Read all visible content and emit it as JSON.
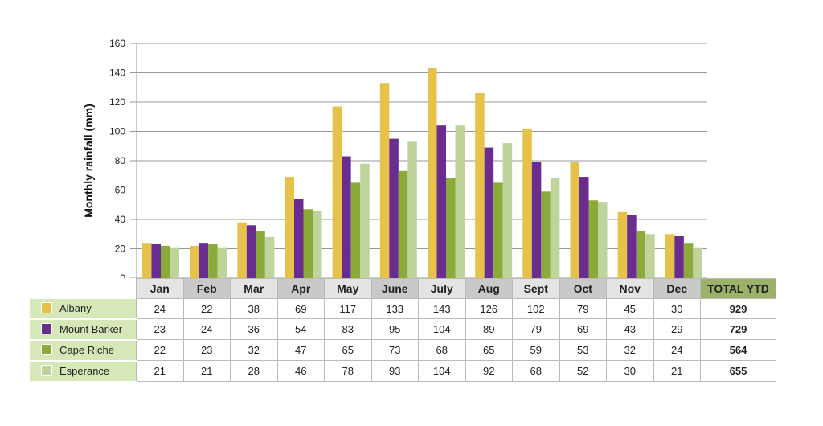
{
  "chart_data": {
    "type": "bar",
    "ylabel": "Monthly rainfall (mm)",
    "ylim": [
      0,
      160
    ],
    "yticks": [
      0,
      20,
      40,
      60,
      80,
      100,
      120,
      140,
      160
    ],
    "categories": [
      "Jan",
      "Feb",
      "Mar",
      "Apr",
      "May",
      "June",
      "July",
      "Aug",
      "Sept",
      "Oct",
      "Nov",
      "Dec"
    ],
    "total_label": "TOTAL YTD",
    "series": [
      {
        "name": "Albany",
        "color": "#e6c24a",
        "values": [
          24,
          22,
          38,
          69,
          117,
          133,
          143,
          126,
          102,
          79,
          45,
          30
        ],
        "total": 929
      },
      {
        "name": "Mount Barker",
        "color": "#6a2c91",
        "values": [
          23,
          24,
          36,
          54,
          83,
          95,
          104,
          89,
          79,
          69,
          43,
          29
        ],
        "total": 729
      },
      {
        "name": "Cape Riche",
        "color": "#8caa3a",
        "values": [
          22,
          23,
          32,
          47,
          65,
          73,
          68,
          65,
          59,
          53,
          32,
          24
        ],
        "total": 564
      },
      {
        "name": "Esperance",
        "color": "#bed49a",
        "values": [
          21,
          21,
          28,
          46,
          78,
          93,
          104,
          92,
          68,
          52,
          30,
          21
        ],
        "total": 655
      }
    ]
  }
}
